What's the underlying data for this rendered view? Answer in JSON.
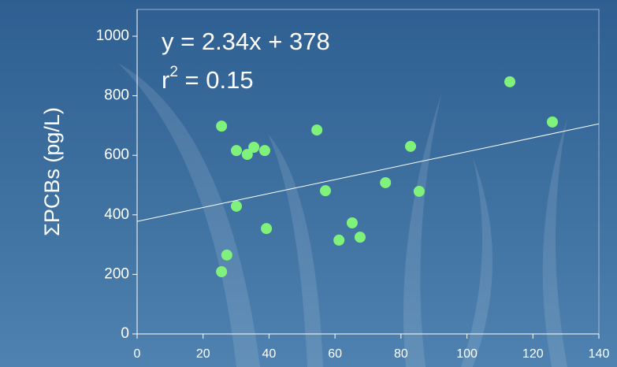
{
  "chart_data": {
    "type": "scatter",
    "y_label": "ΣPCBs (pg/L)",
    "equation": "y = 2.34x + 378",
    "r2": {
      "symbol": "r",
      "exponent": "2",
      "rest": " = 0.15"
    },
    "trendline": {
      "slope": 2.34,
      "intercept": 378
    },
    "x": [
      25.6,
      30.1,
      33.4,
      35.4,
      38.7,
      30.1,
      39.2,
      27.2,
      25.6,
      54.5,
      57.1,
      61.2,
      65.2,
      67.6,
      75.3,
      82.9,
      85.5,
      113,
      125.9
    ],
    "values": [
      698,
      616,
      603,
      627,
      616,
      429,
      354,
      265,
      209,
      685,
      481,
      315,
      373,
      325,
      508,
      630,
      479,
      847,
      712
    ],
    "color": "#80f27c",
    "xlim": [
      0,
      140
    ],
    "xticks": [
      0,
      20,
      40,
      60,
      80,
      100,
      120,
      140
    ],
    "ylim": [
      0,
      1000
    ],
    "yticks": [
      0,
      200,
      400,
      600,
      800,
      1000
    ]
  }
}
